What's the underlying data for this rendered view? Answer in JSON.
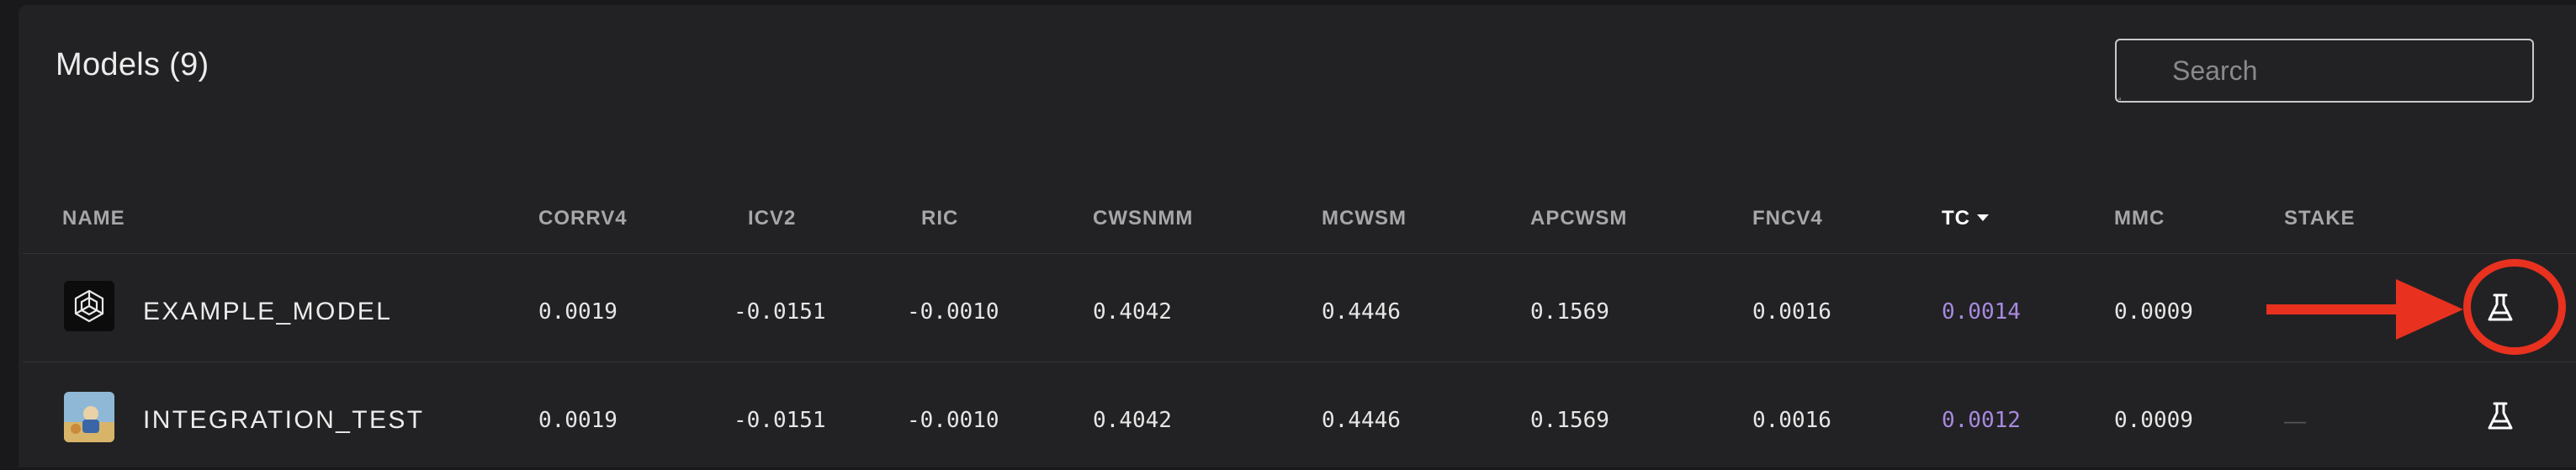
{
  "panel": {
    "title": "Models (9)",
    "search": {
      "placeholder": "Search",
      "value": ""
    }
  },
  "table": {
    "columns": [
      {
        "key": "name",
        "label": "NAME"
      },
      {
        "key": "corrv4",
        "label": "CORRV4"
      },
      {
        "key": "icv2",
        "label": "ICV2"
      },
      {
        "key": "ric",
        "label": "RIC"
      },
      {
        "key": "cwsnmm",
        "label": "CWSNMM"
      },
      {
        "key": "mcwsm",
        "label": "MCWSM"
      },
      {
        "key": "apcwsm",
        "label": "APCWSM"
      },
      {
        "key": "fncv4",
        "label": "FNCV4"
      },
      {
        "key": "tc",
        "label": "TC",
        "sorted": "desc"
      },
      {
        "key": "mmc",
        "label": "MMC"
      },
      {
        "key": "stake",
        "label": "STAKE"
      }
    ],
    "rows": [
      {
        "name": "EXAMPLE_MODEL",
        "avatar": "cube-logo-avatar",
        "corrv4": "0.0019",
        "icv2": "-0.0151",
        "ric": "-0.0010",
        "cwsnmm": "0.4042",
        "mcwsm": "0.4446",
        "apcwsm": "0.1569",
        "fncv4": "0.0016",
        "tc": "0.0014",
        "mmc": "0.0009",
        "stake": "",
        "action_icon": "flask-icon"
      },
      {
        "name": "INTEGRATION_TEST",
        "avatar": "photo-avatar",
        "corrv4": "0.0019",
        "icv2": "-0.0151",
        "ric": "-0.0010",
        "cwsnmm": "0.4042",
        "mcwsm": "0.4446",
        "apcwsm": "0.1569",
        "fncv4": "0.0016",
        "tc": "0.0012",
        "mmc": "0.0009",
        "stake": "—",
        "action_icon": "flask-icon"
      }
    ]
  },
  "colors": {
    "background": "#19191b",
    "panel": "#222224",
    "tc_value": "#a889e0",
    "annotation": "#e8311f"
  },
  "annotation": {
    "type": "red-arrow-and-circle",
    "target": "flask-icon on EXAMPLE_MODEL row"
  }
}
